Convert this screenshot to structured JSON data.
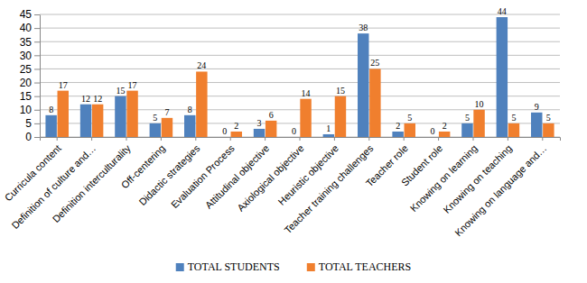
{
  "chart_data": {
    "type": "bar",
    "categories": [
      "Curricula content",
      "Definition of culture and…",
      "Definition interculturality",
      "Off-centering",
      "Didactic strategies",
      "Evaluation Process",
      "Attitudinal objective",
      "Axiological objective",
      "Heuristic objective",
      "Teacher training challenges",
      "Teacher role",
      "Student role",
      "Knowing on learning",
      "Knowing on teaching",
      "Knowing on language and…"
    ],
    "series": [
      {
        "name": "TOTAL STUDENTS",
        "color": "#4f81bd",
        "values": [
          8,
          12,
          15,
          5,
          8,
          0,
          3,
          0,
          1,
          38,
          2,
          0,
          5,
          44,
          9
        ]
      },
      {
        "name": "TOTAL TEACHERS",
        "color": "#f07f2e",
        "values": [
          17,
          12,
          17,
          7,
          24,
          2,
          6,
          14,
          15,
          25,
          5,
          2,
          10,
          5,
          5
        ]
      }
    ],
    "ylim": [
      0,
      45
    ],
    "yticks": [
      0,
      5,
      10,
      15,
      20,
      25,
      30,
      35,
      40,
      45
    ],
    "grid": true,
    "legend": "bottom",
    "data_labels": true
  }
}
